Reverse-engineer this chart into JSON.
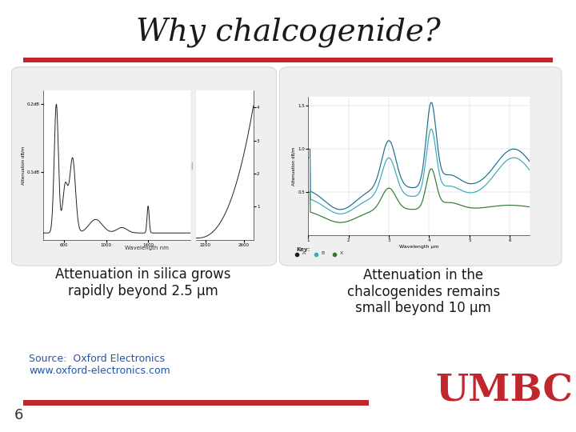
{
  "title": "Why chalcogenide?",
  "title_fontsize": 28,
  "title_style": "italic",
  "title_color": "#1a1a1a",
  "title_font": "serif",
  "bg_color": "#ffffff",
  "red_line_color": "#c0272d",
  "left_caption": "Attenuation in silica grows\nrapidly beyond 2.5 μm",
  "right_caption": "Attenuation in the\nchalcogenides remains\nsmall beyond 10 μm",
  "caption_fontsize": 12,
  "caption_color": "#1a1a1a",
  "source_text": "Source:  Oxford Electronics\nwww.oxford-electronics.com",
  "source_color": "#2255aa",
  "source_fontsize": 9,
  "umbc_color": "#c0272d",
  "umbc_fontsize": 34,
  "slide_number": "6",
  "slide_number_color": "#333333",
  "slide_number_fontsize": 13,
  "panel_bg_left": "#ebebeb",
  "panel_bg_right": "#ebebeb"
}
